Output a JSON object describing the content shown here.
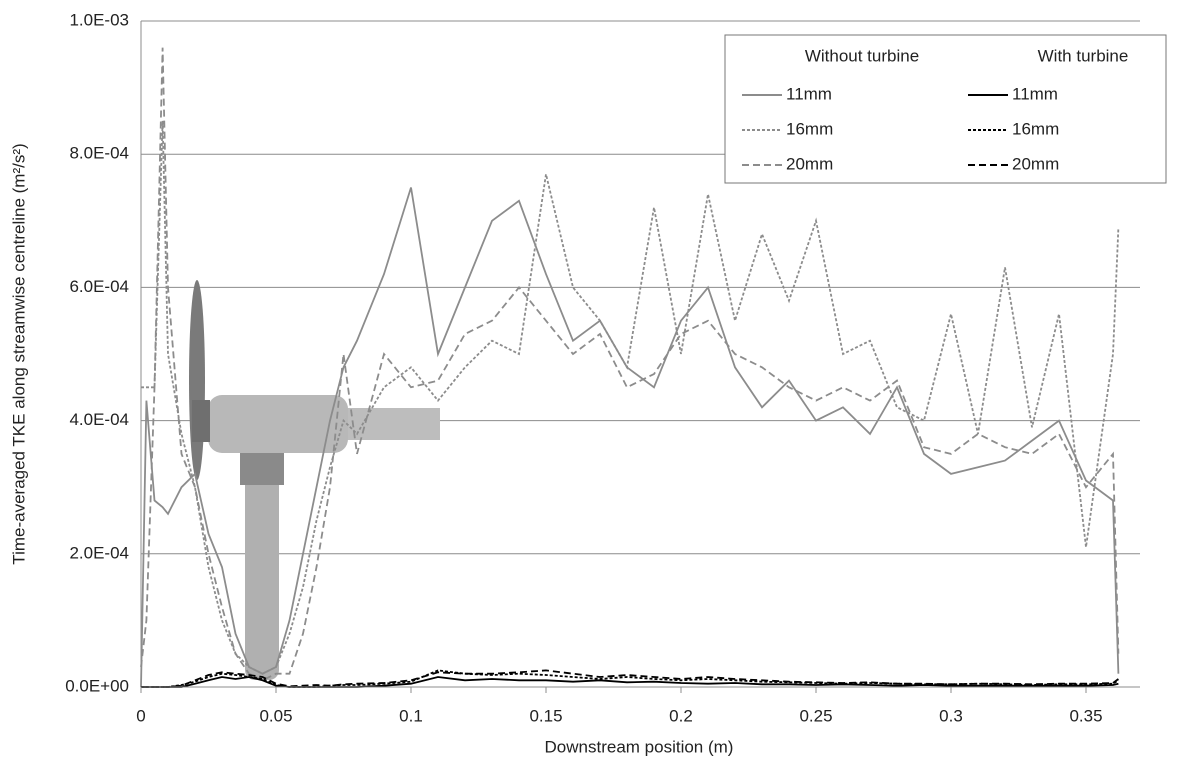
{
  "chart_data": {
    "type": "line",
    "xlabel": "Downstream position (m)",
    "ylabel": "Time-averaged TKE along streamwise centreline (m²/s²)",
    "legend_headers": [
      "Without turbine",
      "With turbine"
    ],
    "x": [
      0,
      0.002,
      0.005,
      0.008,
      0.01,
      0.015,
      0.02,
      0.025,
      0.03,
      0.035,
      0.04,
      0.045,
      0.05,
      0.055,
      0.06,
      0.065,
      0.07,
      0.075,
      0.08,
      0.09,
      0.1,
      0.11,
      0.12,
      0.13,
      0.14,
      0.15,
      0.16,
      0.17,
      0.18,
      0.19,
      0.2,
      0.21,
      0.22,
      0.23,
      0.24,
      0.25,
      0.26,
      0.27,
      0.28,
      0.29,
      0.3,
      0.31,
      0.32,
      0.33,
      0.34,
      0.35,
      0.36,
      0.362
    ],
    "series": [
      {
        "name": "11mm",
        "color": "#8c8c8c",
        "style": "solid",
        "values": [
          0,
          0.00043,
          0.00028,
          0.00027,
          0.00026,
          0.0003,
          0.00032,
          0.00023,
          0.00018,
          8e-05,
          3e-05,
          2e-05,
          3e-05,
          0.0001,
          0.0002,
          0.0003,
          0.0004,
          0.00048,
          0.00052,
          0.00062,
          0.00075,
          0.0005,
          0.0006,
          0.0007,
          0.00073,
          0.00062,
          0.00052,
          0.00055,
          0.00048,
          0.00045,
          0.00055,
          0.0006,
          0.00048,
          0.00042,
          0.00046,
          0.0004,
          0.00042,
          0.00038,
          0.00045,
          0.00035,
          0.00032,
          0.00033,
          0.00034,
          0.00037,
          0.0004,
          0.00031,
          0.00028,
          2e-05
        ]
      },
      {
        "name": "16mm",
        "color": "#8c8c8c",
        "style": "dotted",
        "values": [
          0.00045,
          0.00045,
          0.00045,
          0.00085,
          0.0005,
          0.00038,
          0.0003,
          0.00018,
          0.0001,
          5e-05,
          3e-05,
          2e-05,
          3e-05,
          8e-05,
          0.00015,
          0.00025,
          0.00033,
          0.0004,
          0.00038,
          0.00045,
          0.00048,
          0.00043,
          0.00048,
          0.00052,
          0.0005,
          0.00077,
          0.0006,
          0.00055,
          0.00048,
          0.00072,
          0.0005,
          0.00074,
          0.00055,
          0.00068,
          0.00058,
          0.0007,
          0.0005,
          0.00052,
          0.00042,
          0.0004,
          0.00056,
          0.00038,
          0.00063,
          0.00039,
          0.00056,
          0.00021,
          0.0005,
          0.00069
        ]
      },
      {
        "name": "20mm",
        "color": "#8c8c8c",
        "style": "dashed",
        "values": [
          3e-05,
          0.0001,
          0.00045,
          0.00096,
          0.0006,
          0.00035,
          0.0003,
          0.0002,
          0.00012,
          5e-05,
          2e-05,
          1e-05,
          2e-05,
          2e-05,
          8e-05,
          0.00018,
          0.0003,
          0.0005,
          0.00035,
          0.0005,
          0.00045,
          0.00046,
          0.00053,
          0.00055,
          0.0006,
          0.00055,
          0.0005,
          0.00053,
          0.00045,
          0.00047,
          0.00053,
          0.00055,
          0.0005,
          0.00048,
          0.00045,
          0.00043,
          0.00045,
          0.00043,
          0.00046,
          0.00036,
          0.00035,
          0.00038,
          0.00036,
          0.00035,
          0.00038,
          0.0003,
          0.00035,
          5e-05
        ]
      },
      {
        "name": "11mm",
        "color": "#000000",
        "style": "solid",
        "values": [
          0,
          0,
          0,
          0,
          0,
          0,
          5e-06,
          1e-05,
          1.5e-05,
          1.2e-05,
          1.5e-05,
          1e-05,
          2e-06,
          0,
          0,
          0,
          0,
          0,
          0,
          2e-06,
          5e-06,
          1.5e-05,
          1e-05,
          1.2e-05,
          1e-05,
          1e-05,
          8e-06,
          1e-05,
          7e-06,
          8e-06,
          6e-06,
          5e-06,
          6e-06,
          4e-06,
          4e-06,
          3e-06,
          4e-06,
          3e-06,
          2e-06,
          3e-06,
          2e-06,
          2e-06,
          2e-06,
          2e-06,
          2e-06,
          2e-06,
          3e-06,
          5e-06
        ]
      },
      {
        "name": "16mm",
        "color": "#000000",
        "style": "dotted",
        "values": [
          0,
          0,
          0,
          0,
          0,
          3e-06,
          8e-06,
          1.5e-05,
          2e-05,
          1.8e-05,
          1.5e-05,
          1.2e-05,
          3e-06,
          0,
          0,
          0,
          2e-06,
          3e-06,
          3e-06,
          5e-06,
          8e-06,
          2.5e-05,
          2e-05,
          1.8e-05,
          2e-05,
          1.8e-05,
          1.5e-05,
          1.2e-05,
          1.5e-05,
          1.2e-05,
          1e-05,
          1.2e-05,
          1e-05,
          8e-06,
          7e-06,
          6e-06,
          5e-06,
          6e-06,
          5e-06,
          4e-06,
          4e-06,
          5e-06,
          4e-06,
          3e-06,
          4e-06,
          4e-06,
          5e-06,
          1e-05
        ]
      },
      {
        "name": "20mm",
        "color": "#000000",
        "style": "dashed",
        "values": [
          0,
          0,
          0,
          0,
          0,
          2e-06,
          1e-05,
          1.8e-05,
          2.2e-05,
          2e-05,
          1.8e-05,
          1.5e-05,
          5e-06,
          1e-06,
          2e-06,
          3e-06,
          2e-06,
          4e-06,
          5e-06,
          6e-06,
          1e-05,
          2.2e-05,
          2e-05,
          2e-05,
          2.2e-05,
          2.5e-05,
          2e-05,
          1.5e-05,
          1.8e-05,
          1.5e-05,
          1.2e-05,
          1.5e-05,
          1.2e-05,
          1e-05,
          8e-06,
          7e-06,
          6e-06,
          7e-06,
          5e-06,
          5e-06,
          4e-06,
          5e-06,
          5e-06,
          4e-06,
          5e-06,
          5e-06,
          6e-06,
          1.2e-05
        ]
      }
    ],
    "xlim": [
      0,
      0.37
    ],
    "xticks": [
      0,
      0.05,
      0.1,
      0.15,
      0.2,
      0.25,
      0.3,
      0.35
    ],
    "ylim": [
      0,
      0.001
    ],
    "yticks": [
      {
        "value": 0,
        "label": "0.0E+00"
      },
      {
        "value": 0.0002,
        "label": "2.0E-04"
      },
      {
        "value": 0.0004,
        "label": "4.0E-04"
      },
      {
        "value": 0.0006,
        "label": "6.0E-04"
      },
      {
        "value": 0.0008,
        "label": "8.0E-04"
      },
      {
        "value": 0.001,
        "label": "1.0E-03"
      }
    ],
    "grid": true
  }
}
